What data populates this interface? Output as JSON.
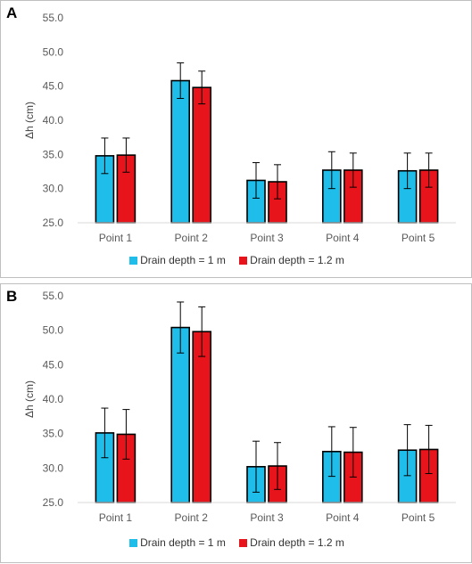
{
  "chart_data": [
    {
      "type": "bar",
      "panel_label": "A",
      "categories": [
        "Point 1",
        "Point 2",
        "Point 3",
        "Point 4",
        "Point 5"
      ],
      "ylabel": "Δh (cm)",
      "ylim": [
        25.0,
        55.0
      ],
      "yticks": [
        "25.0",
        "30.0",
        "35.0",
        "40.0",
        "45.0",
        "50.0",
        "55.0"
      ],
      "grid": false,
      "legend": "bottom",
      "series": [
        {
          "name": "Drain depth = 1 m",
          "color": "#1ebdea",
          "values": [
            34.8,
            45.8,
            31.2,
            32.7,
            32.6
          ],
          "errors": [
            2.6,
            2.6,
            2.6,
            2.7,
            2.6
          ]
        },
        {
          "name": "Drain depth = 1.2 m",
          "color": "#e8141b",
          "values": [
            34.9,
            44.8,
            31.0,
            32.7,
            32.7
          ],
          "errors": [
            2.5,
            2.4,
            2.5,
            2.5,
            2.5
          ]
        }
      ]
    },
    {
      "type": "bar",
      "panel_label": "B",
      "categories": [
        "Point 1",
        "Point 2",
        "Point 3",
        "Point 4",
        "Point 5"
      ],
      "ylabel": "Δh (cm)",
      "ylim": [
        25.0,
        55.0
      ],
      "yticks": [
        "25.0",
        "30.0",
        "35.0",
        "40.0",
        "45.0",
        "50.0",
        "55.0"
      ],
      "grid": false,
      "legend": "bottom",
      "series": [
        {
          "name": "Drain depth = 1 m",
          "color": "#1ebdea",
          "values": [
            35.1,
            50.4,
            30.2,
            32.4,
            32.6
          ],
          "errors": [
            3.6,
            3.7,
            3.7,
            3.6,
            3.7
          ]
        },
        {
          "name": "Drain depth = 1.2 m",
          "color": "#e8141b",
          "values": [
            34.9,
            49.8,
            30.3,
            32.3,
            32.7
          ],
          "errors": [
            3.6,
            3.6,
            3.4,
            3.6,
            3.5
          ]
        }
      ]
    }
  ]
}
